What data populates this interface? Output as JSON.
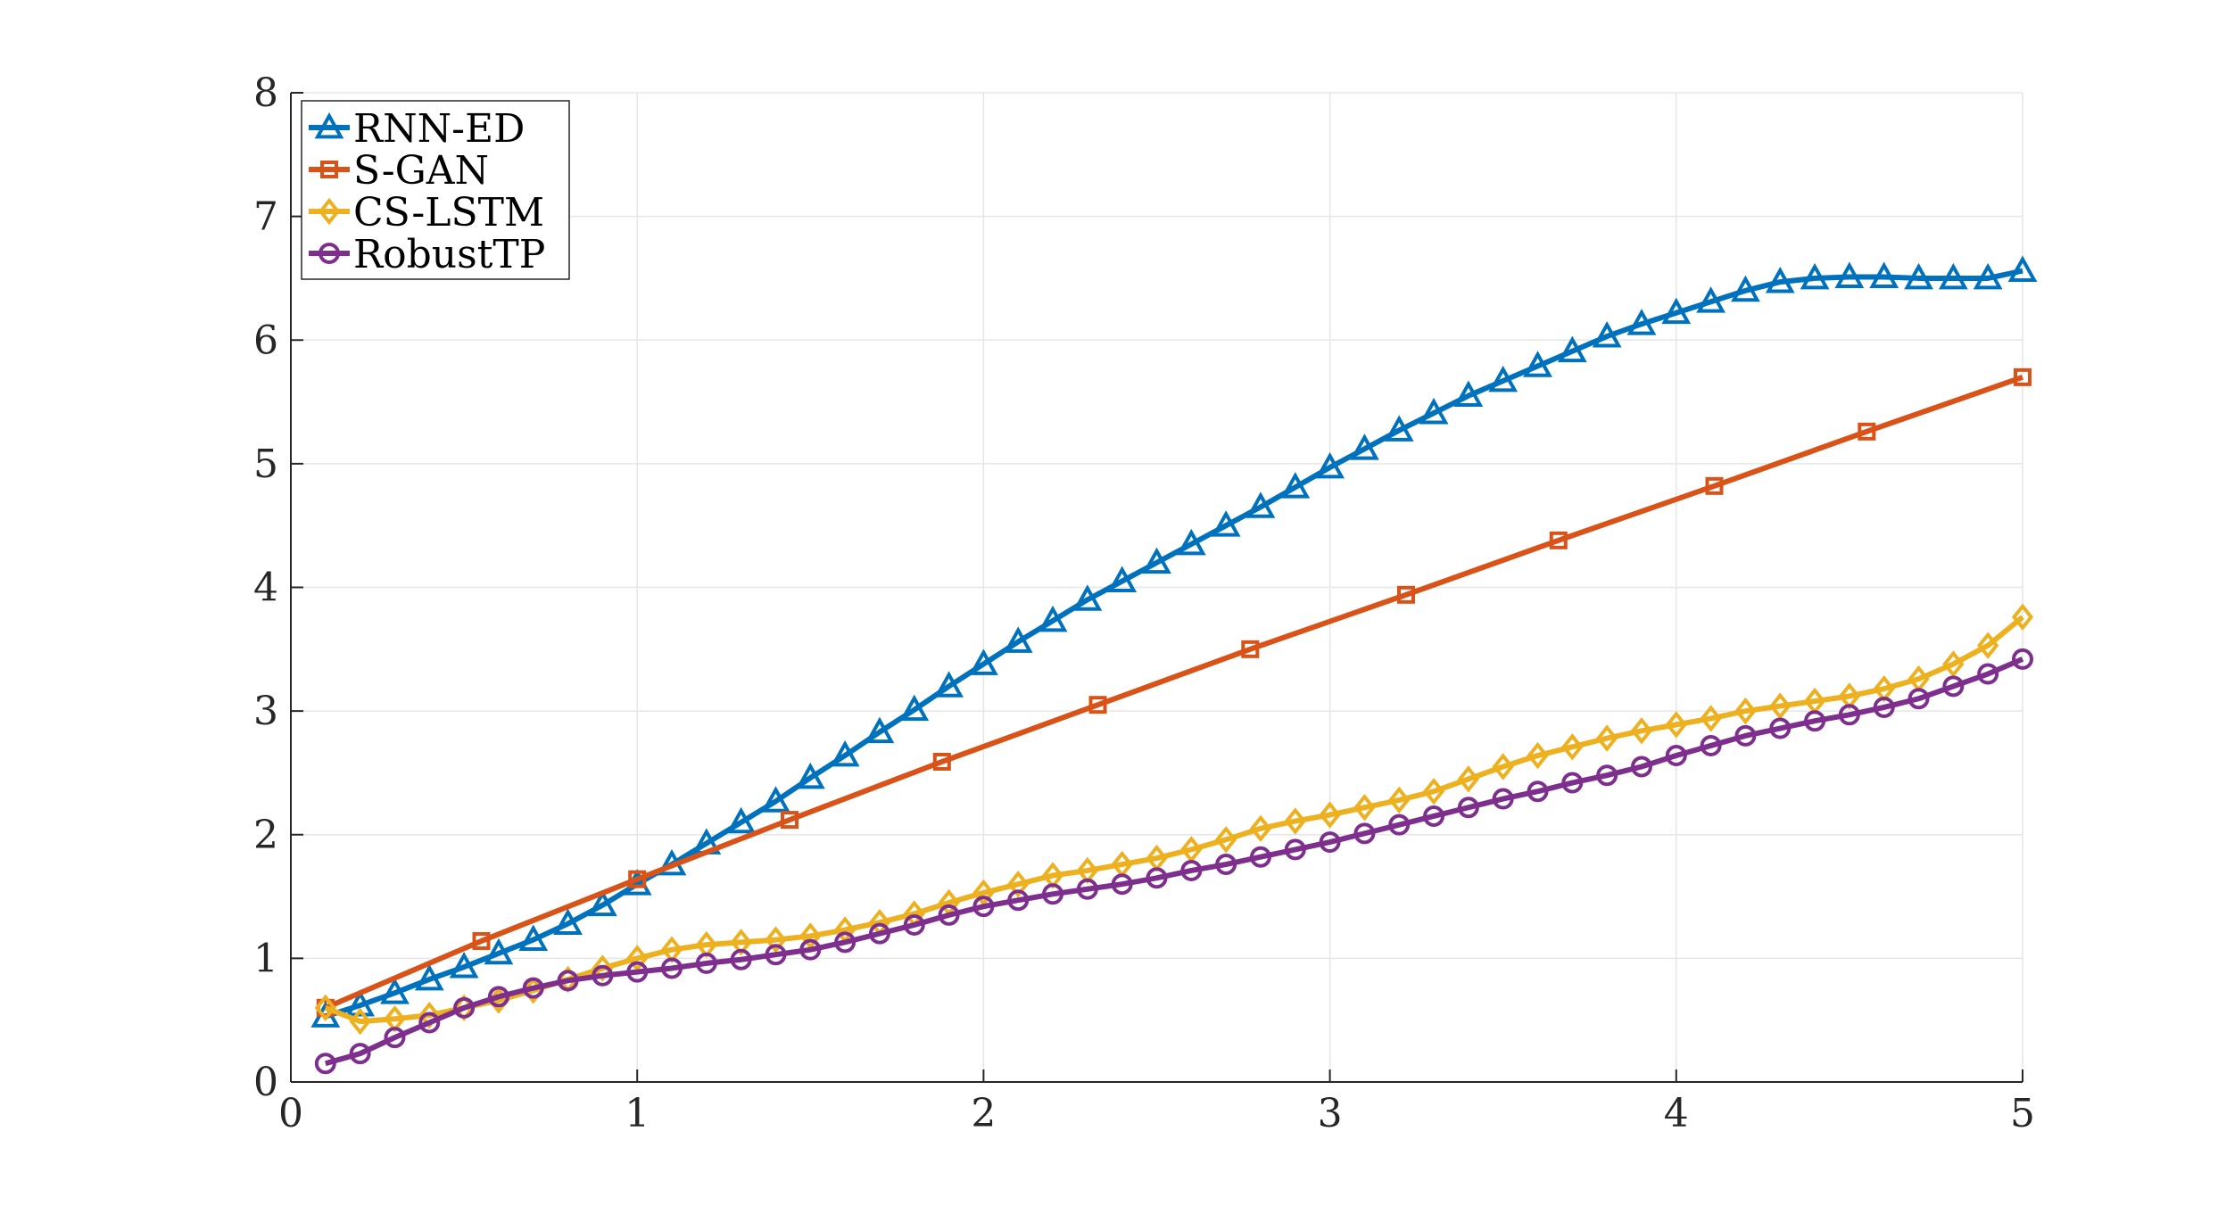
{
  "chart_data": {
    "type": "line",
    "title": "",
    "xlabel": "",
    "ylabel": "",
    "xlim": [
      0,
      5
    ],
    "ylim": [
      0,
      8
    ],
    "xticks": [
      0,
      1,
      2,
      3,
      4,
      5
    ],
    "yticks": [
      0,
      1,
      2,
      3,
      4,
      5,
      6,
      7,
      8
    ],
    "xtick_labels": [
      "0",
      "1",
      "2",
      "3",
      "4",
      "5"
    ],
    "ytick_labels": [
      "0",
      "1",
      "2",
      "3",
      "4",
      "5",
      "6",
      "7",
      "8"
    ],
    "grid": true,
    "legend_position": "top-left",
    "series": [
      {
        "name": "RNN-ED",
        "color": "#0072BD",
        "marker": "triangle-up",
        "x": [
          0.1,
          0.2,
          0.3,
          0.4,
          0.5,
          0.6,
          0.7,
          0.8,
          0.9,
          1.0,
          1.1,
          1.2,
          1.3,
          1.4,
          1.5,
          1.6,
          1.7,
          1.8,
          1.9,
          2.0,
          2.1,
          2.2,
          2.3,
          2.4,
          2.5,
          2.6,
          2.7,
          2.8,
          2.9,
          3.0,
          3.1,
          3.2,
          3.3,
          3.4,
          3.5,
          3.6,
          3.7,
          3.8,
          3.9,
          4.0,
          4.1,
          4.2,
          4.3,
          4.4,
          4.5,
          4.6,
          4.7,
          4.8,
          4.9,
          5.0
        ],
        "values": [
          0.53,
          0.62,
          0.72,
          0.83,
          0.93,
          1.04,
          1.15,
          1.28,
          1.43,
          1.6,
          1.76,
          1.93,
          2.1,
          2.27,
          2.46,
          2.64,
          2.83,
          3.01,
          3.2,
          3.38,
          3.56,
          3.73,
          3.9,
          4.05,
          4.2,
          4.35,
          4.5,
          4.65,
          4.81,
          4.97,
          5.12,
          5.27,
          5.41,
          5.55,
          5.67,
          5.79,
          5.91,
          6.03,
          6.13,
          6.22,
          6.31,
          6.4,
          6.47,
          6.5,
          6.51,
          6.51,
          6.5,
          6.5,
          6.5,
          6.56
        ]
      },
      {
        "name": "S-GAN",
        "color": "#D95319",
        "marker": "square",
        "x": [
          0.1,
          0.55,
          1.0,
          1.44,
          1.88,
          2.33,
          2.77,
          3.22,
          3.66,
          4.11,
          4.55,
          5.0
        ],
        "values": [
          0.6,
          1.14,
          1.64,
          2.12,
          2.59,
          3.05,
          3.5,
          3.94,
          4.38,
          4.82,
          5.26,
          5.7
        ]
      },
      {
        "name": "CS-LSTM",
        "color": "#EDB120",
        "marker": "diamond",
        "x": [
          0.1,
          0.2,
          0.3,
          0.4,
          0.5,
          0.6,
          0.7,
          0.8,
          0.9,
          1.0,
          1.1,
          1.2,
          1.3,
          1.4,
          1.5,
          1.6,
          1.7,
          1.8,
          1.9,
          2.0,
          2.1,
          2.2,
          2.3,
          2.4,
          2.5,
          2.6,
          2.7,
          2.8,
          2.9,
          3.0,
          3.1,
          3.2,
          3.3,
          3.4,
          3.5,
          3.6,
          3.7,
          3.8,
          3.9,
          4.0,
          4.1,
          4.2,
          4.3,
          4.4,
          4.5,
          4.6,
          4.7,
          4.8,
          4.9,
          5.0
        ],
        "values": [
          0.6,
          0.49,
          0.51,
          0.54,
          0.6,
          0.66,
          0.74,
          0.83,
          0.92,
          1.0,
          1.07,
          1.11,
          1.13,
          1.15,
          1.18,
          1.23,
          1.29,
          1.36,
          1.45,
          1.53,
          1.6,
          1.67,
          1.71,
          1.76,
          1.81,
          1.88,
          1.96,
          2.05,
          2.11,
          2.16,
          2.22,
          2.28,
          2.35,
          2.45,
          2.55,
          2.64,
          2.71,
          2.78,
          2.84,
          2.89,
          2.94,
          3.0,
          3.04,
          3.08,
          3.12,
          3.18,
          3.26,
          3.38,
          3.53,
          3.76
        ]
      },
      {
        "name": "RobustTP",
        "color": "#7E2F8E",
        "marker": "circle",
        "x": [
          0.1,
          0.2,
          0.3,
          0.4,
          0.5,
          0.6,
          0.7,
          0.8,
          0.9,
          1.0,
          1.1,
          1.2,
          1.3,
          1.4,
          1.5,
          1.6,
          1.7,
          1.8,
          1.9,
          2.0,
          2.1,
          2.2,
          2.3,
          2.4,
          2.5,
          2.6,
          2.7,
          2.8,
          2.9,
          3.0,
          3.1,
          3.2,
          3.3,
          3.4,
          3.5,
          3.6,
          3.7,
          3.8,
          3.9,
          4.0,
          4.1,
          4.2,
          4.3,
          4.4,
          4.5,
          4.6,
          4.7,
          4.8,
          4.9,
          5.0
        ],
        "values": [
          0.15,
          0.23,
          0.36,
          0.48,
          0.6,
          0.69,
          0.76,
          0.82,
          0.86,
          0.89,
          0.92,
          0.96,
          0.99,
          1.03,
          1.07,
          1.13,
          1.2,
          1.27,
          1.35,
          1.42,
          1.47,
          1.52,
          1.56,
          1.6,
          1.65,
          1.71,
          1.76,
          1.82,
          1.88,
          1.94,
          2.01,
          2.08,
          2.15,
          2.22,
          2.29,
          2.35,
          2.42,
          2.48,
          2.55,
          2.64,
          2.72,
          2.8,
          2.86,
          2.92,
          2.97,
          3.03,
          3.1,
          3.2,
          3.3,
          3.42
        ]
      }
    ]
  }
}
